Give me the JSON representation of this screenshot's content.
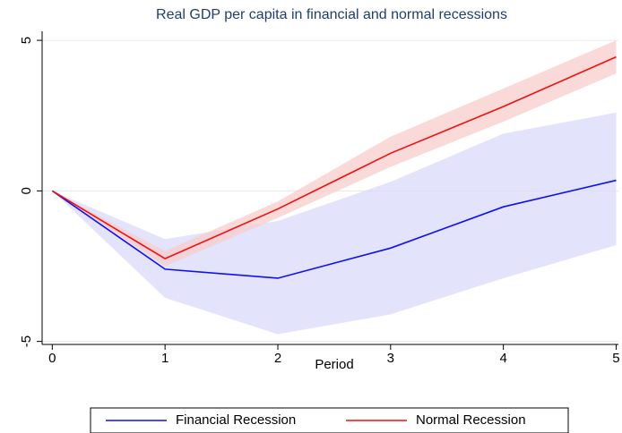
{
  "chart_data": {
    "type": "line",
    "title": "Real GDP per capita in financial and normal recessions",
    "x_label": "Period",
    "x": [
      0,
      1,
      2,
      3,
      4,
      5
    ],
    "xlim": [
      -0.09,
      5.02
    ],
    "xticks": [
      0,
      1,
      2,
      3,
      4,
      5
    ],
    "ylim": [
      -5.1,
      5.3
    ],
    "yticks": [
      -5,
      0,
      5
    ],
    "grid": true,
    "legend": "bottom",
    "series": [
      {
        "name": "Financial Recession",
        "color": "#1010f0",
        "band_color": "#d9d9fb",
        "values": [
          0,
          -2.6,
          -2.9,
          -1.9,
          -0.53,
          0.35
        ],
        "lower": [
          0,
          -3.55,
          -4.76,
          -4.1,
          -2.9,
          -1.8
        ],
        "upper": [
          0,
          -1.6,
          -1.0,
          0.3,
          1.9,
          2.6
        ]
      },
      {
        "name": "Normal Recession",
        "color": "#f01010",
        "band_color": "#f8cccc",
        "values": [
          0,
          -2.25,
          -0.6,
          1.25,
          2.8,
          4.45
        ],
        "lower": [
          0,
          -2.5,
          -0.9,
          0.8,
          2.3,
          3.9
        ],
        "upper": [
          0,
          -2.0,
          -0.35,
          1.8,
          3.4,
          5.0
        ]
      }
    ]
  }
}
